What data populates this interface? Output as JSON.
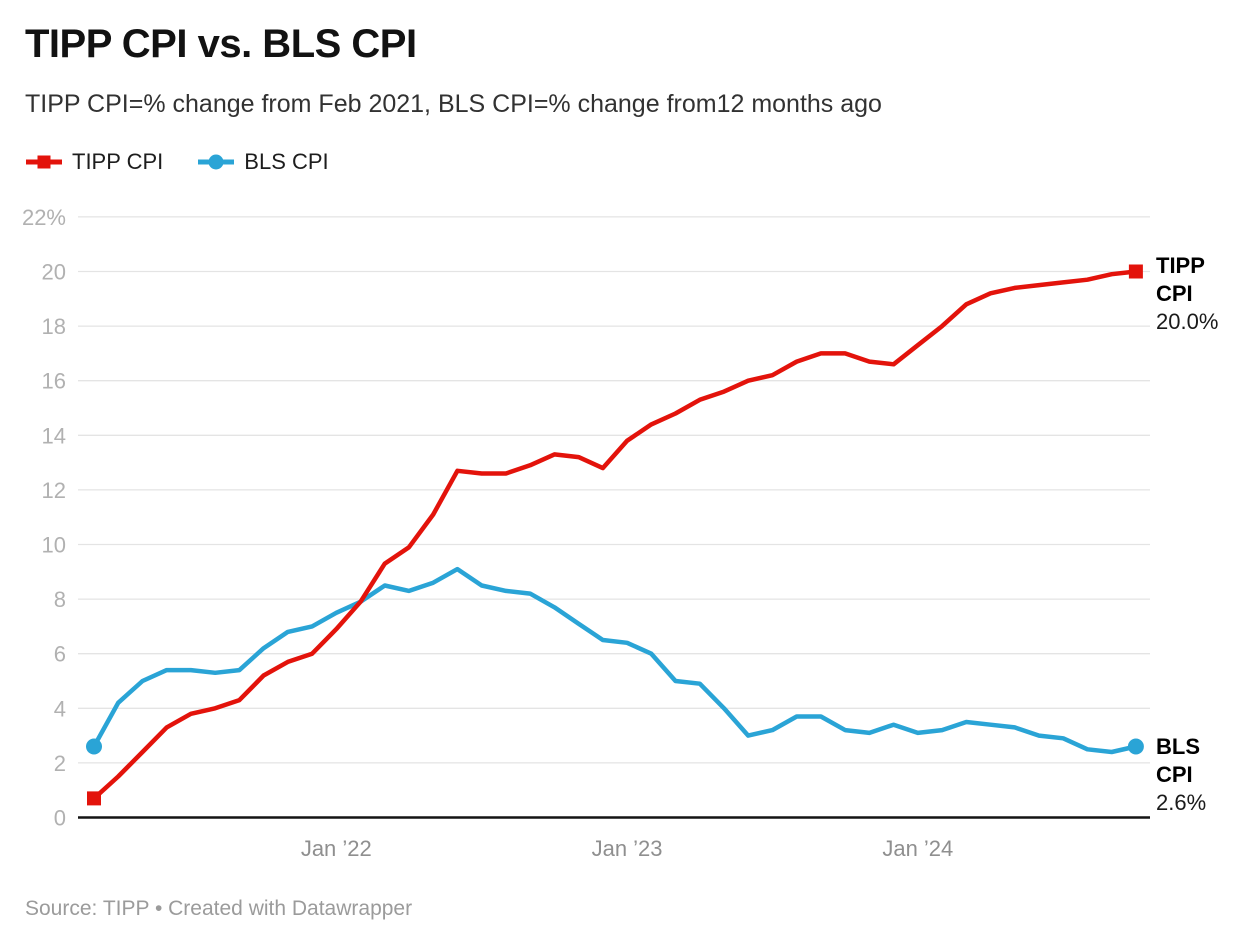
{
  "header": {
    "title": "TIPP CPI vs. BLS CPI",
    "subtitle": "TIPP CPI=% change from Feb 2021, BLS CPI=% change from12 months ago"
  },
  "footer": {
    "text": "Source: TIPP • Created with Datawrapper"
  },
  "chart_data": {
    "type": "line",
    "title": "TIPP CPI vs. BLS CPI",
    "subtitle": "TIPP CPI=% change from Feb 2021, BLS CPI=% change from12 months ago",
    "xlabel": "",
    "ylabel": "",
    "ylim": [
      0,
      22
    ],
    "grid": true,
    "legend_position": "top-left",
    "x_months": [
      "Mar 2021",
      "Apr 2021",
      "May 2021",
      "Jun 2021",
      "Jul 2021",
      "Aug 2021",
      "Sep 2021",
      "Oct 2021",
      "Nov 2021",
      "Dec 2021",
      "Jan 2022",
      "Feb 2022",
      "Mar 2022",
      "Apr 2022",
      "May 2022",
      "Jun 2022",
      "Jul 2022",
      "Aug 2022",
      "Sep 2022",
      "Oct 2022",
      "Nov 2022",
      "Dec 2022",
      "Jan 2023",
      "Feb 2023",
      "Mar 2023",
      "Apr 2023",
      "May 2023",
      "Jun 2023",
      "Jul 2023",
      "Aug 2023",
      "Sep 2023",
      "Oct 2023",
      "Nov 2023",
      "Dec 2023",
      "Jan 2024",
      "Feb 2024",
      "Mar 2024",
      "Apr 2024",
      "May 2024",
      "Jun 2024",
      "Jul 2024",
      "Aug 2024",
      "Sep 2024",
      "Oct 2024"
    ],
    "series": [
      {
        "name": "TIPP CPI",
        "color": "#e3130b",
        "marker": "square",
        "end_label": {
          "name": "TIPP CPI",
          "value": "20.0%"
        },
        "values": [
          0.7,
          1.5,
          2.4,
          3.3,
          3.8,
          4.0,
          4.3,
          5.2,
          5.7,
          6.0,
          6.9,
          7.9,
          9.3,
          9.9,
          11.1,
          12.7,
          12.6,
          12.6,
          12.9,
          13.3,
          13.2,
          12.8,
          13.8,
          14.4,
          14.8,
          15.3,
          15.6,
          16.0,
          16.2,
          16.7,
          17.0,
          17.0,
          16.7,
          16.6,
          17.3,
          18.0,
          18.8,
          19.2,
          19.4,
          19.5,
          19.6,
          19.7,
          19.9,
          20.0
        ]
      },
      {
        "name": "BLS CPI",
        "color": "#2aa4d6",
        "marker": "circle",
        "end_label": {
          "name": "BLS CPI",
          "value": "2.6%"
        },
        "values": [
          2.6,
          4.2,
          5.0,
          5.4,
          5.4,
          5.3,
          5.4,
          6.2,
          6.8,
          7.0,
          7.5,
          7.9,
          8.5,
          8.3,
          8.6,
          9.1,
          8.5,
          8.3,
          8.2,
          7.7,
          7.1,
          6.5,
          6.4,
          6.0,
          5.0,
          4.9,
          4.0,
          3.0,
          3.2,
          3.7,
          3.7,
          3.2,
          3.1,
          3.4,
          3.1,
          3.2,
          3.5,
          3.4,
          3.3,
          3.0,
          2.9,
          2.5,
          2.4,
          2.6
        ]
      }
    ],
    "yticks": [
      {
        "value": 0,
        "label": "0"
      },
      {
        "value": 2,
        "label": "2"
      },
      {
        "value": 4,
        "label": "4"
      },
      {
        "value": 6,
        "label": "6"
      },
      {
        "value": 8,
        "label": "8"
      },
      {
        "value": 10,
        "label": "10"
      },
      {
        "value": 12,
        "label": "12"
      },
      {
        "value": 14,
        "label": "14"
      },
      {
        "value": 16,
        "label": "16"
      },
      {
        "value": 18,
        "label": "18"
      },
      {
        "value": 20,
        "label": "20"
      },
      {
        "value": 22,
        "label": "22%"
      }
    ],
    "xticks": [
      {
        "label": "Jan ’22",
        "month_index": 10
      },
      {
        "label": "Jan ’23",
        "month_index": 22
      },
      {
        "label": "Jan ’24",
        "month_index": 34
      }
    ],
    "colors": {
      "gridline": "#e4e4e4",
      "axis_line": "#141414",
      "y_tick_text": "#b1b1b1",
      "x_tick_text": "#8f8f8f"
    }
  }
}
